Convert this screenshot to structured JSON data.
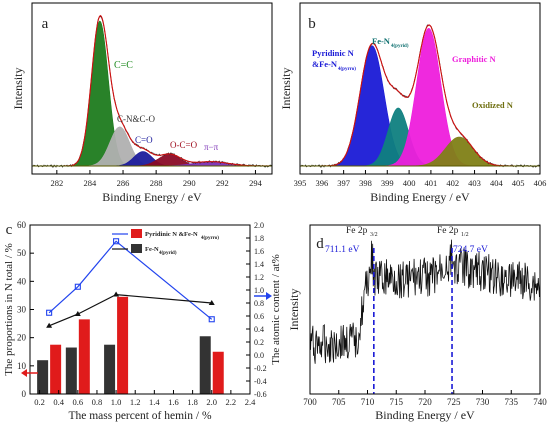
{
  "chart_data": [
    {
      "panel": "a",
      "type": "area",
      "xlabel": "Binding Energy / eV",
      "ylabel": "Intensity",
      "xlim": [
        280.5,
        295
      ],
      "xticks": [
        282,
        284,
        286,
        288,
        290,
        292,
        294
      ],
      "series": [
        {
          "name": "C=C",
          "center": 284.6,
          "height": 1.0,
          "fwhm": 1.2,
          "color": "#1e7b1e"
        },
        {
          "name": "C-N&C-O",
          "center": 285.8,
          "height": 0.27,
          "fwhm": 1.4,
          "color": "#b0b0b0"
        },
        {
          "name": "C=O",
          "center": 287.2,
          "height": 0.1,
          "fwhm": 1.3,
          "color": "#1c1c9c"
        },
        {
          "name": "O-C=O",
          "center": 288.8,
          "height": 0.08,
          "fwhm": 1.6,
          "color": "#8a0b26"
        },
        {
          "name": "π−π",
          "center": 291.3,
          "height": 0.03,
          "fwhm": 2.5,
          "color": "#7a2fb5"
        }
      ],
      "annotations": [
        "C=C",
        "C-N&C-O",
        "C=O",
        "O-C=O",
        "π−π"
      ]
    },
    {
      "panel": "b",
      "type": "area",
      "xlabel": "Binding Energy / eV",
      "ylabel": "Intensity",
      "xlim": [
        395,
        406
      ],
      "xticks": [
        395,
        396,
        397,
        398,
        399,
        400,
        401,
        402,
        403,
        404,
        405,
        406
      ],
      "series": [
        {
          "name": "Pyridinic N &Fe-N4(pyrro)",
          "center": 398.3,
          "height": 0.83,
          "fwhm": 1.3,
          "color": "#1a1ad6"
        },
        {
          "name": "Fe-N4(pyrid)",
          "center": 399.5,
          "height": 0.4,
          "fwhm": 1.1,
          "color": "#0f8080"
        },
        {
          "name": "Graphitic N",
          "center": 400.9,
          "height": 0.95,
          "fwhm": 1.3,
          "color": "#ee1edc"
        },
        {
          "name": "Oxidized N",
          "center": 402.3,
          "height": 0.2,
          "fwhm": 1.5,
          "color": "#7f7f16"
        }
      ],
      "annotations": [
        "Pyridinic N &Fe-N4(pyrro)",
        "Fe-N4(pyrid)",
        "Graphitic N",
        "Oxidized N"
      ]
    },
    {
      "panel": "c",
      "type": "bar",
      "xlabel": "The mass percent of hemin / %",
      "ylabel": "The proportions  in N  total  / %",
      "y2label": "The atomic content / at%",
      "xlim": [
        0.1,
        2.4
      ],
      "xticks": [
        0.2,
        0.4,
        0.6,
        0.8,
        1.0,
        1.2,
        1.4,
        1.6,
        1.8,
        2.0,
        2.2,
        2.4
      ],
      "ylim": [
        0,
        60
      ],
      "yticks": [
        0,
        10,
        20,
        30,
        40,
        50,
        60
      ],
      "y2lim": [
        -0.6,
        2.0
      ],
      "y2ticks": [
        -0.6,
        -0.4,
        -0.2,
        0.0,
        0.2,
        0.4,
        0.6,
        0.8,
        1.0,
        1.2,
        1.4,
        1.6,
        1.8,
        2.0
      ],
      "x": [
        0.3,
        0.6,
        1.0,
        2.0
      ],
      "bars": [
        {
          "name": "Pyridinic N &Fe-N4(pyrro)",
          "values": [
            17.5,
            26.5,
            34.5,
            15
          ],
          "color": "#e01b1b"
        },
        {
          "name": "Fe-N4(pyrid)",
          "values": [
            12,
            16.5,
            17.5,
            20.5
          ],
          "color": "#333333"
        }
      ],
      "lines": [
        {
          "name": "blue",
          "values": [
            0.65,
            1.05,
            1.75,
            0.55
          ],
          "color": "#2244ee"
        },
        {
          "name": "black",
          "values": [
            0.45,
            0.63,
            0.93,
            0.8
          ],
          "color": "#111111"
        }
      ],
      "legend": [
        "Pyridinic N &Fe-N4(pyrro)",
        "Fe-N4(pyrid)"
      ]
    },
    {
      "panel": "d",
      "type": "line",
      "xlabel": "Binding Energy / eV",
      "ylabel": "Intensity",
      "xlim": [
        700,
        740
      ],
      "xticks": [
        700,
        705,
        710,
        715,
        720,
        725,
        730,
        735,
        740
      ],
      "annotations": [
        "Fe 2p3/2",
        "711.1 eV",
        "Fe 2p1/2",
        "724.7 eV"
      ],
      "markers": [
        711.1,
        724.7
      ]
    }
  ]
}
